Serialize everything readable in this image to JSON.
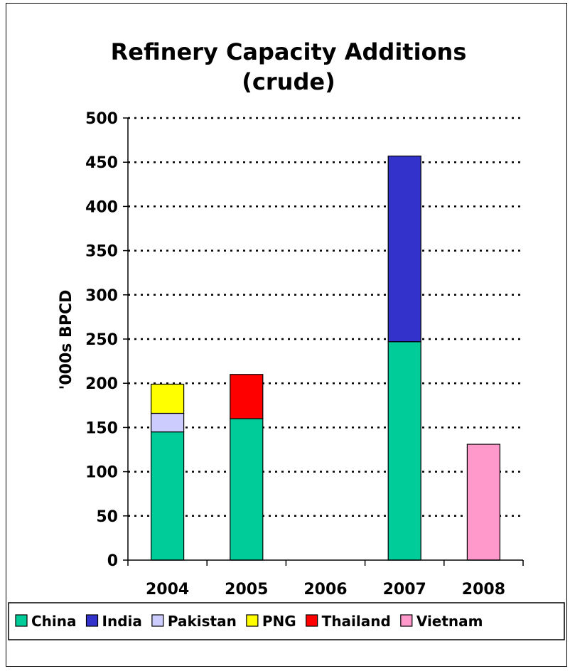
{
  "chart_data": {
    "type": "bar",
    "stacked": true,
    "title": "Refinery Capacity Additions",
    "subtitle": "(crude)",
    "xlabel": "",
    "ylabel": "'000s BPCD",
    "ylim": [
      0,
      500
    ],
    "yticks": [
      0,
      50,
      100,
      150,
      200,
      250,
      300,
      350,
      400,
      450,
      500
    ],
    "grid": true,
    "legend_position": "bottom",
    "categories": [
      "2004",
      "2005",
      "2006",
      "2007",
      "2008"
    ],
    "series": [
      {
        "name": "China",
        "color": "#00cc99",
        "values": [
          145,
          160,
          0,
          247,
          0
        ]
      },
      {
        "name": "India",
        "color": "#3333cc",
        "values": [
          0,
          0,
          0,
          210,
          0
        ]
      },
      {
        "name": "Pakistan",
        "color": "#ccccff",
        "values": [
          21,
          0,
          0,
          0,
          0
        ]
      },
      {
        "name": "PNG",
        "color": "#ffff00",
        "values": [
          33,
          0,
          0,
          0,
          0
        ]
      },
      {
        "name": "Thailand",
        "color": "#ff0000",
        "values": [
          0,
          50,
          0,
          0,
          0
        ]
      },
      {
        "name": "Vietnam",
        "color": "#ff99cc",
        "values": [
          0,
          0,
          0,
          0,
          131
        ]
      }
    ]
  }
}
